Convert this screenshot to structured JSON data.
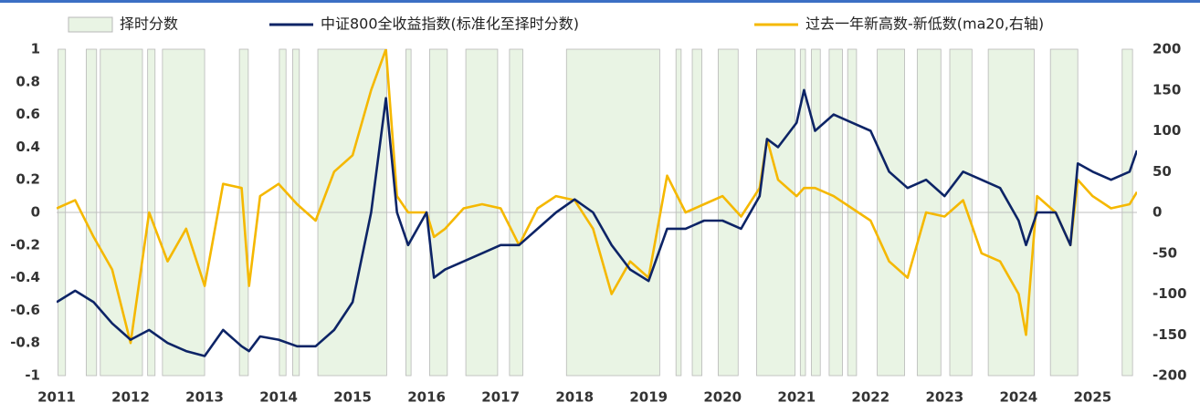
{
  "chart_data": {
    "type": "line",
    "x": [
      2011,
      2011.25,
      2011.5,
      2011.75,
      2012,
      2012.25,
      2012.5,
      2012.75,
      2013,
      2013.25,
      2013.5,
      2013.6,
      2013.75,
      2014,
      2014.25,
      2014.5,
      2014.75,
      2015,
      2015.25,
      2015.45,
      2015.6,
      2015.75,
      2016,
      2016.1,
      2016.25,
      2016.5,
      2016.75,
      2017,
      2017.25,
      2017.5,
      2017.75,
      2018,
      2018.25,
      2018.5,
      2018.75,
      2019,
      2019.25,
      2019.5,
      2019.75,
      2020,
      2020.25,
      2020.5,
      2020.6,
      2020.75,
      2021,
      2021.1,
      2021.25,
      2021.5,
      2021.75,
      2022,
      2022.25,
      2022.5,
      2022.75,
      2023,
      2023.25,
      2023.5,
      2023.75,
      2024,
      2024.1,
      2024.25,
      2024.5,
      2024.7,
      2024.8,
      2025,
      2025.25,
      2025.5,
      2025.6
    ],
    "series": [
      {
        "name": "择时分数",
        "color": "#e9f4e4",
        "spans": [
          [
            2011.02,
            2011.12
          ],
          [
            2011.4,
            2011.54
          ],
          [
            2011.59,
            2012.16
          ],
          [
            2012.23,
            2012.33
          ],
          [
            2012.43,
            2013.0
          ],
          [
            2013.47,
            2013.59
          ],
          [
            2014.01,
            2014.1
          ],
          [
            2014.19,
            2014.28
          ],
          [
            2014.53,
            2015.46
          ],
          [
            2015.72,
            2015.79
          ],
          [
            2016.04,
            2016.28
          ],
          [
            2016.53,
            2016.96
          ],
          [
            2017.12,
            2017.3
          ],
          [
            2017.89,
            2019.15
          ],
          [
            2019.37,
            2019.44
          ],
          [
            2019.59,
            2019.72
          ],
          [
            2019.94,
            2020.21
          ],
          [
            2020.46,
            2020.98
          ],
          [
            2021.05,
            2021.12
          ],
          [
            2021.2,
            2021.32
          ],
          [
            2021.44,
            2021.62
          ],
          [
            2021.69,
            2021.81
          ],
          [
            2022.09,
            2022.46
          ],
          [
            2022.63,
            2022.95
          ],
          [
            2023.07,
            2023.37
          ],
          [
            2023.59,
            2024.21
          ],
          [
            2024.43,
            2024.8
          ],
          [
            2025.4,
            2025.54
          ]
        ]
      },
      {
        "name": "中证800全收益指数(标准化至择时分数)",
        "color": "#0d2466",
        "values": [
          -0.55,
          -0.48,
          -0.55,
          -0.68,
          -0.78,
          -0.72,
          -0.8,
          -0.85,
          -0.88,
          -0.72,
          -0.82,
          -0.85,
          -0.76,
          -0.78,
          -0.82,
          -0.82,
          -0.72,
          -0.55,
          0.0,
          0.7,
          0.0,
          -0.2,
          0.0,
          -0.4,
          -0.35,
          -0.3,
          -0.25,
          -0.2,
          -0.2,
          -0.1,
          0.0,
          0.08,
          0.0,
          -0.2,
          -0.35,
          -0.42,
          -0.1,
          -0.1,
          -0.05,
          -0.05,
          -0.1,
          0.1,
          0.45,
          0.4,
          0.55,
          0.75,
          0.5,
          0.6,
          0.55,
          0.5,
          0.25,
          0.15,
          0.2,
          0.1,
          0.25,
          0.2,
          0.15,
          -0.05,
          -0.2,
          0.0,
          0.0,
          -0.2,
          0.3,
          0.25,
          0.2,
          0.25,
          0.38
        ]
      },
      {
        "name": "过去一年新高数-新低数(ma20,右轴)",
        "color": "#f5b800",
        "axis": "y2",
        "values": [
          5,
          15,
          -30,
          -70,
          -160,
          0,
          -60,
          -20,
          -90,
          35,
          30,
          -90,
          20,
          35,
          10,
          -10,
          50,
          70,
          150,
          200,
          20,
          0,
          0,
          -30,
          -20,
          5,
          10,
          5,
          -40,
          5,
          20,
          15,
          -20,
          -100,
          -60,
          -80,
          45,
          0,
          10,
          20,
          -5,
          30,
          90,
          40,
          20,
          30,
          30,
          20,
          5,
          -10,
          -60,
          -80,
          0,
          -5,
          15,
          -50,
          -60,
          -100,
          -150,
          20,
          0,
          -40,
          40,
          20,
          5,
          10,
          25
        ]
      }
    ],
    "xlim": [
      2011,
      2025.6
    ],
    "xticks": [
      2011,
      2012,
      2013,
      2014,
      2015,
      2016,
      2017,
      2018,
      2019,
      2020,
      2021,
      2022,
      2023,
      2024,
      2025
    ],
    "ylim": [
      -1,
      1
    ],
    "yticks": [
      1,
      0.8,
      0.6,
      0.4,
      0.2,
      0,
      -0.2,
      -0.4,
      -0.6,
      -0.8,
      -1
    ],
    "y2lim": [
      -200,
      200
    ],
    "y2ticks": [
      200,
      150,
      100,
      50,
      0,
      -50,
      -100,
      -150,
      -200
    ]
  }
}
